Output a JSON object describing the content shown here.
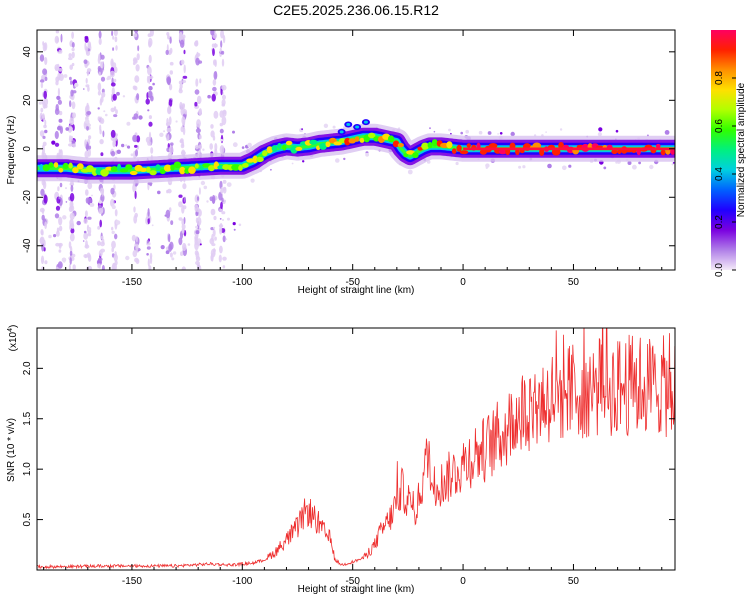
{
  "figure": {
    "title": "C2E5.2025.236.06.15.R12"
  },
  "chart_data": [
    {
      "id": "spectrogram",
      "type": "heatmap",
      "xlabel": "Height of straight line (km)",
      "ylabel": "Frequency (Hz)",
      "xlim": [
        -193,
        96
      ],
      "ylim": [
        -50,
        49
      ],
      "xticks": [
        -150,
        -100,
        -50,
        0,
        50
      ],
      "yticks": [
        -40,
        -20,
        0,
        20,
        40
      ],
      "ridge": {
        "x": [
          -193,
          -180,
          -170,
          -160,
          -150,
          -140,
          -130,
          -120,
          -110,
          -100,
          -95,
          -90,
          -85,
          -80,
          -75,
          -70,
          -65,
          -60,
          -55,
          -50,
          -45,
          -40,
          -35,
          -30,
          -28,
          -26,
          -24,
          -22,
          -20,
          -18,
          -15,
          -10,
          -5,
          0,
          10,
          20,
          30,
          40,
          50,
          60,
          70,
          80,
          96
        ],
        "y": [
          -8,
          -8,
          -9,
          -9,
          -9,
          -8.5,
          -8,
          -7.5,
          -7,
          -7,
          -5,
          -2,
          0,
          1,
          0.5,
          1,
          2,
          2.5,
          3,
          4,
          5,
          5,
          4,
          3,
          0,
          -2,
          -3,
          -2,
          -1,
          0,
          1,
          1,
          0.5,
          0,
          0,
          0,
          0,
          0,
          0,
          0,
          0,
          0,
          0
        ]
      },
      "colorbar": {
        "label": "Normalized spectral amplitude",
        "range": [
          0,
          1
        ],
        "ticks": [
          "0.0",
          "0.2",
          "0.4",
          "0.6",
          "0.8"
        ],
        "colors": [
          "#f4eaf8",
          "#b07fe8",
          "#7a00e0",
          "#2000ff",
          "#0060ff",
          "#00d0e0",
          "#00f080",
          "#30ff00",
          "#b0ff00",
          "#ffe000",
          "#ff9000",
          "#ff2000",
          "#ff0060"
        ]
      }
    },
    {
      "id": "snr",
      "type": "line",
      "xlabel": "Height of straight line (km)",
      "ylabel": "SNR (10 * v/v)",
      "multiplier": "(x10",
      "multiplier_exp": "4",
      "multiplier_close": ")",
      "xlim": [
        -193,
        96
      ],
      "ylim": [
        0,
        2.4
      ],
      "xticks": [
        -150,
        -100,
        -50,
        0,
        50
      ],
      "yticks": [
        "0.5",
        "1.0",
        "1.5",
        "2.0"
      ],
      "line_color": "#ee2e2e",
      "series": [
        {
          "name": "SNR",
          "x": [
            -193,
            -160,
            -130,
            -115,
            -105,
            -95,
            -90,
            -85,
            -80,
            -75,
            -72,
            -70,
            -68,
            -66,
            -64,
            -62,
            -60,
            -58,
            -55,
            -50,
            -45,
            -40,
            -38,
            -35,
            -32,
            -30,
            -28,
            -26,
            -24,
            -22,
            -20,
            -18,
            -16,
            -15,
            -14,
            -12,
            -10,
            -5,
            0,
            5,
            10,
            15,
            20,
            25,
            30,
            40,
            50,
            60,
            70,
            80,
            90,
            96
          ],
          "y": [
            0.03,
            0.04,
            0.04,
            0.06,
            0.05,
            0.07,
            0.1,
            0.18,
            0.3,
            0.42,
            0.55,
            0.6,
            0.52,
            0.48,
            0.4,
            0.35,
            0.3,
            0.1,
            0.05,
            0.08,
            0.12,
            0.25,
            0.35,
            0.45,
            0.55,
            0.7,
            0.8,
            0.75,
            0.65,
            0.55,
            0.7,
            0.95,
            1.1,
            1.15,
            0.75,
            0.9,
            0.85,
            0.95,
            1.05,
            1.15,
            1.2,
            1.3,
            1.4,
            1.55,
            1.62,
            1.72,
            1.78,
            1.8,
            1.82,
            1.84,
            1.82,
            1.8
          ]
        }
      ]
    }
  ]
}
